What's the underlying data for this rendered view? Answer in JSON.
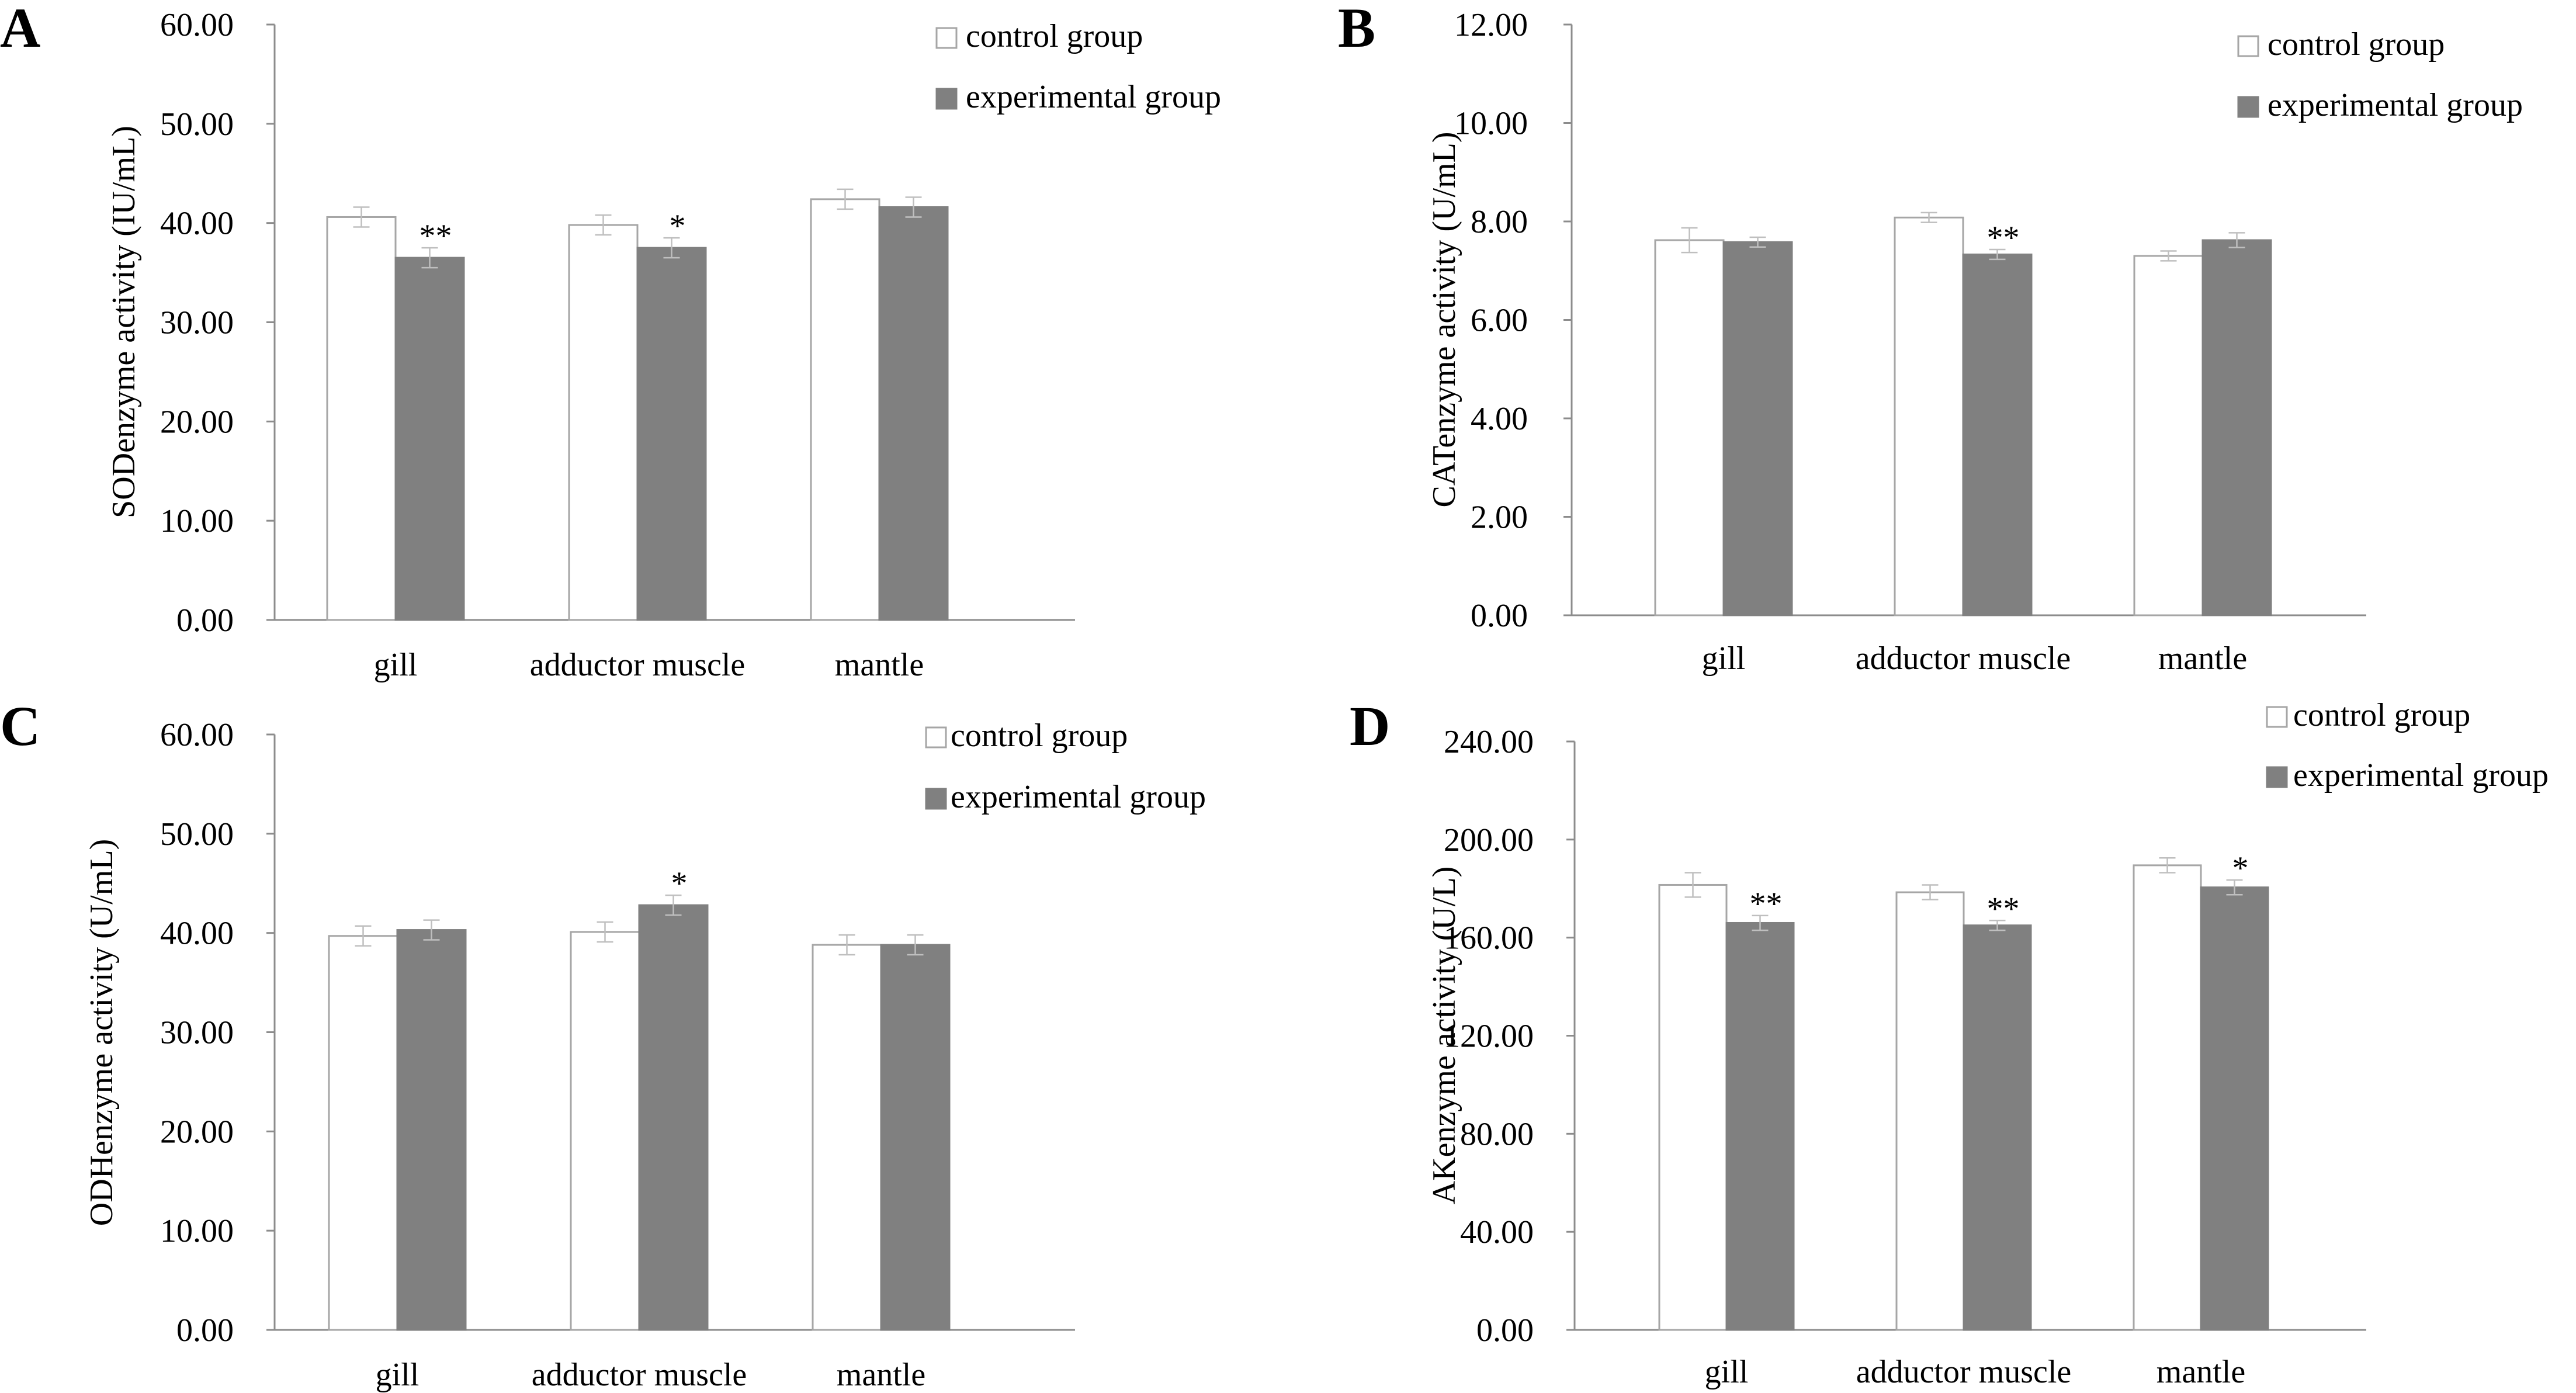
{
  "chart_data": [
    {
      "type": "bar",
      "panel": "A",
      "ylabel": "SODenzyme activity (IU/mL)",
      "xlabel": "",
      "categories": [
        "gill",
        "adductor muscle",
        "mantle"
      ],
      "ylim": [
        0,
        60
      ],
      "yticks": [
        0,
        10,
        20,
        30,
        40,
        50,
        60
      ],
      "series": [
        {
          "name": "control group",
          "values": [
            40.6,
            39.8,
            42.4
          ],
          "errors": [
            1.0,
            1.0,
            1.0
          ],
          "significance": [
            "",
            "",
            ""
          ]
        },
        {
          "name": "experimental group",
          "values": [
            36.5,
            37.5,
            41.6
          ],
          "errors": [
            1.0,
            1.0,
            1.0
          ],
          "significance": [
            "**",
            "*",
            ""
          ]
        }
      ],
      "legend": "top-right"
    },
    {
      "type": "bar",
      "panel": "B",
      "ylabel": "CATenzyme activity (U/mL)",
      "xlabel": "",
      "categories": [
        "gill",
        "adductor muscle",
        "mantle"
      ],
      "ylim": [
        0,
        12
      ],
      "yticks": [
        0,
        2,
        4,
        6,
        8,
        10,
        12
      ],
      "series": [
        {
          "name": "control group",
          "values": [
            7.62,
            8.08,
            7.3
          ],
          "errors": [
            0.25,
            0.1,
            0.1
          ],
          "significance": [
            "",
            "",
            ""
          ]
        },
        {
          "name": "experimental group",
          "values": [
            7.58,
            7.33,
            7.62
          ],
          "errors": [
            0.1,
            0.1,
            0.15
          ],
          "significance": [
            "",
            "**",
            ""
          ]
        }
      ],
      "legend": "top-right"
    },
    {
      "type": "bar",
      "panel": "C",
      "ylabel": "ODHenzyme activity (U/mL)",
      "xlabel": "",
      "categories": [
        "gill",
        "adductor muscle",
        "mantle"
      ],
      "ylim": [
        0,
        60
      ],
      "yticks": [
        0,
        10,
        20,
        30,
        40,
        50,
        60
      ],
      "series": [
        {
          "name": "control group",
          "values": [
            39.7,
            40.1,
            38.8
          ],
          "errors": [
            1.0,
            1.0,
            1.0
          ],
          "significance": [
            "",
            "",
            ""
          ]
        },
        {
          "name": "experimental group",
          "values": [
            40.3,
            42.8,
            38.8
          ],
          "errors": [
            1.0,
            1.0,
            1.0
          ],
          "significance": [
            "",
            "*",
            ""
          ]
        }
      ],
      "legend": "top-right"
    },
    {
      "type": "bar",
      "panel": "D",
      "ylabel": "AKenzyme activity (U/L)",
      "xlabel": "",
      "categories": [
        "gill",
        "adductor muscle",
        "mantle"
      ],
      "ylim": [
        0,
        240
      ],
      "yticks": [
        0,
        40,
        80,
        120,
        160,
        200,
        240
      ],
      "series": [
        {
          "name": "control group",
          "values": [
            181.5,
            178.5,
            189.5
          ],
          "errors": [
            5.0,
            3.0,
            3.0
          ],
          "significance": [
            "",
            "",
            ""
          ]
        },
        {
          "name": "experimental group",
          "values": [
            166.0,
            165.0,
            180.5
          ],
          "errors": [
            3.0,
            2.0,
            3.0
          ],
          "significance": [
            "**",
            "**",
            "*"
          ]
        }
      ],
      "legend": "top-right"
    }
  ],
  "colors": {
    "control_fill": "#ffffff",
    "control_stroke": "#a6a6a6",
    "experimental_fill": "#808080",
    "axis": "#8c8c8c",
    "errorbar": "#bfbfbf"
  }
}
